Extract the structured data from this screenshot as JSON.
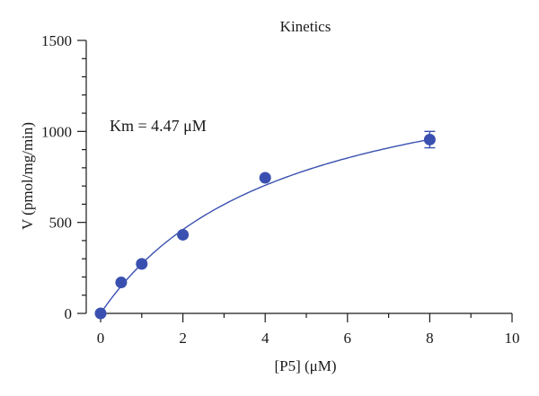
{
  "chart_data": {
    "type": "scatter",
    "title": "Kinetics",
    "xlabel": "[P5] (μM)",
    "ylabel": "V (pmol/mg/min)",
    "xlim": [
      0,
      10
    ],
    "ylim": [
      0,
      1500
    ],
    "x_ticks": [
      0,
      2,
      4,
      6,
      8,
      10
    ],
    "x_tick_labels": [
      "0",
      "2",
      "4",
      "6",
      "8",
      "10"
    ],
    "y_ticks": [
      0,
      500,
      1000,
      1500
    ],
    "y_tick_labels": [
      "0",
      "500",
      "1000",
      "1500"
    ],
    "grid": false,
    "annotation": "Km = 4.47 μM",
    "points": [
      {
        "x": 0,
        "y": 0,
        "err": 0
      },
      {
        "x": 0.5,
        "y": 170,
        "err": 0
      },
      {
        "x": 1,
        "y": 272,
        "err": 0
      },
      {
        "x": 2,
        "y": 432,
        "err": 0
      },
      {
        "x": 4,
        "y": 745,
        "err": 0
      },
      {
        "x": 8,
        "y": 955,
        "err": 45
      }
    ],
    "fit": {
      "model": "michaelis-menten",
      "Km": 4.47,
      "Vmax": 1490
    },
    "colors": {
      "points": "#3a50b0",
      "fit": "#3a50b0",
      "axes": "#1a1a1a"
    }
  }
}
